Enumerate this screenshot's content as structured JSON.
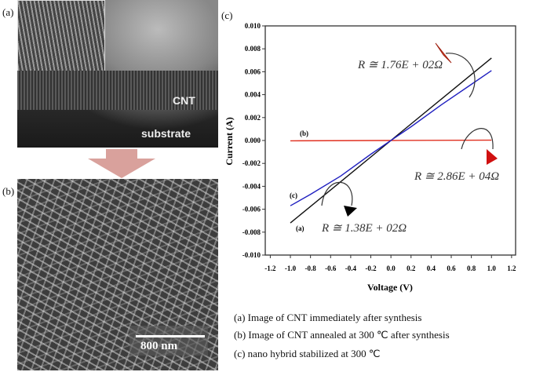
{
  "panels": {
    "a": {
      "label": "(a)",
      "texts": [
        "CNT",
        "substrate"
      ]
    },
    "b": {
      "label": "(b)",
      "scale_bar": "800 nm"
    },
    "c": {
      "label": "(c)"
    }
  },
  "colors": {
    "arrow_fill": "#d9a19c",
    "series_a": "#111111",
    "series_b": "#e03020",
    "series_c": "#2020c0"
  },
  "legend": [
    "(a) Image of CNT immediately after synthesis",
    "(b) Image of CNT annealed at 300 ℃ after synthesis",
    "(c) nano hybrid stabilized at 300 ℃"
  ],
  "chart_data": {
    "type": "line",
    "xlabel": "Voltage (V)",
    "ylabel": "Current (A)",
    "xlim": [
      -1.25,
      1.24
    ],
    "ylim": [
      -0.01,
      0.01
    ],
    "xticks": [
      "-1.2",
      "-1.0",
      "-0.8",
      "-0.6",
      "-0.4",
      "-0.2",
      "0.0",
      "0.2",
      "0.4",
      "0.6",
      "0.8",
      "1.0",
      "1.2"
    ],
    "xtick_values": [
      -1.2,
      -1.0,
      -0.8,
      -0.6,
      -0.4,
      -0.2,
      0.0,
      0.2,
      0.4,
      0.6,
      0.8,
      1.0,
      1.2
    ],
    "yticks": [
      "0.010",
      "0.008",
      "0.006",
      "0.004",
      "0.002",
      "0.000",
      "-0.002",
      "-0.004",
      "-0.006",
      "-0.008",
      "-0.010"
    ],
    "ytick_values": [
      0.01,
      0.008,
      0.006,
      0.004,
      0.002,
      0.0,
      -0.002,
      -0.004,
      -0.006,
      -0.008,
      -0.01
    ],
    "grid": false,
    "series": [
      {
        "name": "(a)",
        "color": "#111111",
        "x": [
          -1.0,
          -0.5,
          0.0,
          0.5,
          1.0
        ],
        "y": [
          -0.0072,
          -0.0036,
          0.0,
          0.0036,
          0.0072
        ]
      },
      {
        "name": "(b)",
        "color": "#e03020",
        "x": [
          -1.0,
          0.0,
          1.0
        ],
        "y": [
          -3e-05,
          0.0,
          3e-05
        ]
      },
      {
        "name": "(c)",
        "color": "#2020c0",
        "x": [
          -1.0,
          -0.8,
          -0.5,
          -0.2,
          0.0,
          0.2,
          0.5,
          0.8,
          1.0
        ],
        "y": [
          -0.0057,
          -0.0047,
          -0.0031,
          -0.0012,
          0.0,
          0.0012,
          0.0031,
          0.0049,
          0.0061
        ]
      }
    ],
    "annotations": [
      "R ≅ 1.76E + 02Ω",
      "R ≅ 2.86E + 04Ω",
      "R ≅ 1.38E + 02Ω"
    ]
  }
}
